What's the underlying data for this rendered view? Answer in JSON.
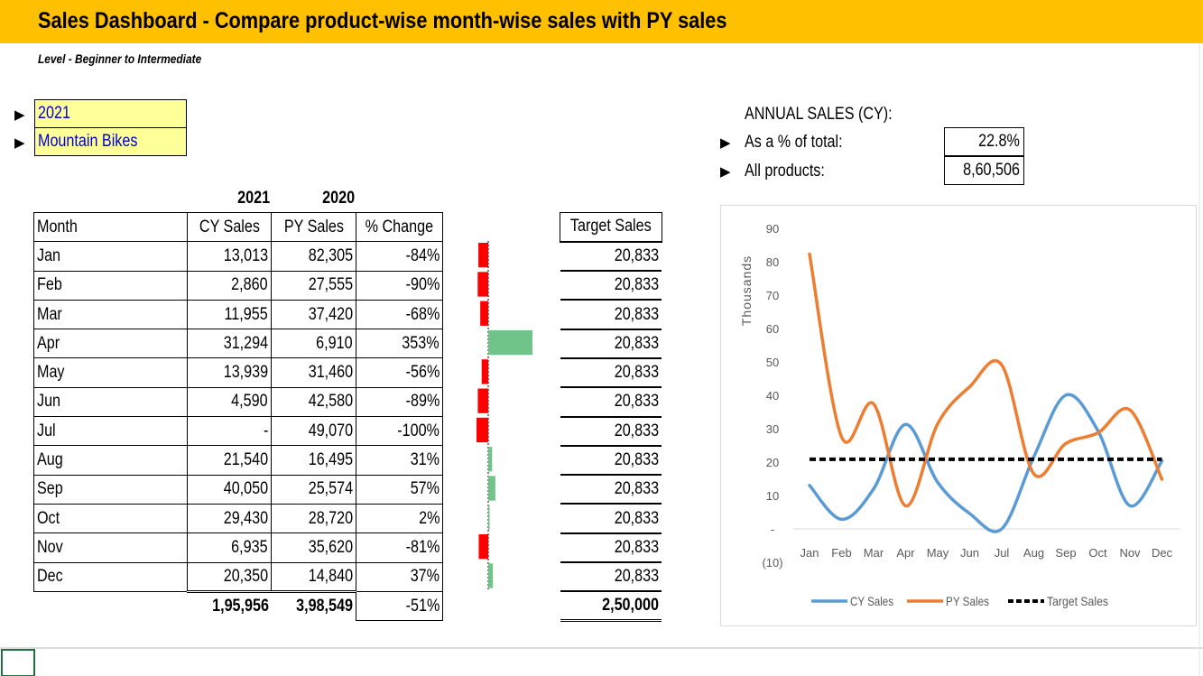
{
  "title": "Sales Dashboard - Compare product-wise month-wise sales with PY sales",
  "subtitle": "Level - Beginner to Intermediate",
  "selectors": {
    "year": "2021",
    "product": "Mountain Bikes"
  },
  "annual": {
    "heading": "ANNUAL SALES (CY):",
    "pct_label": "As a % of total:",
    "pct_value": "22.8%",
    "all_label": "All products:",
    "all_value": "8,60,506"
  },
  "table": {
    "cy_year": "2021",
    "py_year": "2020",
    "headers": {
      "month": "Month",
      "cy": "CY Sales",
      "py": "PY Sales",
      "pct": "% Change",
      "target": "Target Sales"
    },
    "rows": [
      {
        "month": "Jan",
        "cy": "13,013",
        "py": "82,305",
        "pct": "-84%",
        "target": "20,833",
        "pct_value": -84
      },
      {
        "month": "Feb",
        "cy": "2,860",
        "py": "27,555",
        "pct": "-90%",
        "target": "20,833",
        "pct_value": -90
      },
      {
        "month": "Mar",
        "cy": "11,955",
        "py": "37,420",
        "pct": "-68%",
        "target": "20,833",
        "pct_value": -68
      },
      {
        "month": "Apr",
        "cy": "31,294",
        "py": "6,910",
        "pct": "353%",
        "target": "20,833",
        "pct_value": 353
      },
      {
        "month": "May",
        "cy": "13,939",
        "py": "31,460",
        "pct": "-56%",
        "target": "20,833",
        "pct_value": -56
      },
      {
        "month": "Jun",
        "cy": "4,590",
        "py": "42,580",
        "pct": "-89%",
        "target": "20,833",
        "pct_value": -89
      },
      {
        "month": "Jul",
        "cy": "-",
        "py": "49,070",
        "pct": "-100%",
        "target": "20,833",
        "pct_value": -100
      },
      {
        "month": "Aug",
        "cy": "21,540",
        "py": "16,495",
        "pct": "31%",
        "target": "20,833",
        "pct_value": 31
      },
      {
        "month": "Sep",
        "cy": "40,050",
        "py": "25,574",
        "pct": "57%",
        "target": "20,833",
        "pct_value": 57
      },
      {
        "month": "Oct",
        "cy": "29,430",
        "py": "28,720",
        "pct": "2%",
        "target": "20,833",
        "pct_value": 2
      },
      {
        "month": "Nov",
        "cy": "6,935",
        "py": "35,620",
        "pct": "-81%",
        "target": "20,833",
        "pct_value": -81
      },
      {
        "month": "Dec",
        "cy": "20,350",
        "py": "14,840",
        "pct": "37%",
        "target": "20,833",
        "pct_value": 37
      }
    ],
    "totals": {
      "cy": "1,95,956",
      "py": "3,98,549",
      "pct": "-51%",
      "target": "2,50,000"
    }
  },
  "databar_colors": {
    "negative": "#ff0000",
    "positive": "#70c48a"
  },
  "chart_data": {
    "type": "line",
    "ylabel": "Thousands",
    "categories": [
      "Jan",
      "Feb",
      "Mar",
      "Apr",
      "May",
      "Jun",
      "Jul",
      "Aug",
      "Sep",
      "Oct",
      "Nov",
      "Dec"
    ],
    "yticks": [
      "(10)",
      "-",
      "10",
      "20",
      "30",
      "40",
      "50",
      "60",
      "70",
      "80",
      "90"
    ],
    "ylim": [
      -10,
      90
    ],
    "legend_position": "bottom",
    "series": [
      {
        "name": "CY Sales",
        "color": "#5b9bd5",
        "dash": false,
        "values": [
          13.013,
          2.86,
          11.955,
          31.294,
          13.939,
          4.59,
          0,
          21.54,
          40.05,
          29.43,
          6.935,
          20.35
        ]
      },
      {
        "name": "PY Sales",
        "color": "#ed7d31",
        "dash": false,
        "values": [
          82.305,
          27.555,
          37.42,
          6.91,
          31.46,
          42.58,
          49.07,
          16.495,
          25.574,
          28.72,
          35.62,
          14.84
        ]
      },
      {
        "name": "Target Sales",
        "color": "#000000",
        "dash": true,
        "values": [
          20.833,
          20.833,
          20.833,
          20.833,
          20.833,
          20.833,
          20.833,
          20.833,
          20.833,
          20.833,
          20.833,
          20.833
        ]
      }
    ]
  }
}
